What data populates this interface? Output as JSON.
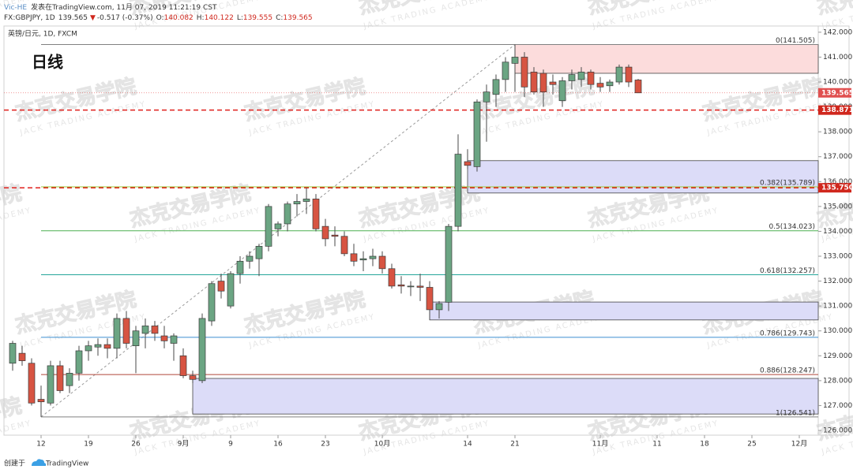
{
  "header": {
    "author": "Vic-HE",
    "published": "发表在TradingView.com, 11月 07, 2019 11:21:19 CST",
    "symbol": "FX:GBPJPY, 1D",
    "last": "139.565",
    "arrow": "▼",
    "change": "-0.517 (-0.37%)",
    "ohlc": [
      {
        "key": "O:",
        "value": "140.082"
      },
      {
        "key": "H:",
        "value": "140.122"
      },
      {
        "key": "L:",
        "value": "139.555"
      },
      {
        "key": "C:",
        "value": "139.565"
      }
    ]
  },
  "chart_data": {
    "type": "candlestick",
    "symbol_label": "英镑/日元, 1D, FXCM",
    "title": "日线",
    "categories": [
      null,
      null,
      null,
      "12",
      null,
      null,
      null,
      null,
      "19",
      null,
      null,
      null,
      null,
      "26",
      null,
      null,
      null,
      null,
      "9月",
      null,
      null,
      null,
      null,
      "9",
      null,
      null,
      null,
      null,
      "16",
      null,
      null,
      null,
      null,
      "23",
      null,
      null,
      null,
      null,
      null,
      "10月",
      null,
      null,
      null,
      null,
      null,
      null,
      null,
      null,
      "14",
      null,
      null,
      null,
      null,
      "21",
      null,
      null,
      null,
      null,
      null,
      null,
      null,
      null,
      "11月",
      null,
      null,
      null,
      null,
      null,
      "11",
      null,
      null,
      null,
      null,
      "18",
      null,
      null,
      null,
      null,
      "25",
      null,
      null,
      null,
      null,
      "12月"
    ],
    "open": [
      128.7,
      129.1,
      128.7,
      127.25,
      127.1,
      128.6,
      127.8,
      128.3,
      129.2,
      129.35,
      129.45,
      129.3,
      130.5,
      129.4,
      129.9,
      130.2,
      129.8,
      129.5,
      129.0,
      128.2,
      128.0,
      130.4,
      132.0,
      131.0,
      132.3,
      132.8,
      132.9,
      133.4,
      134.1,
      134.3,
      135.1,
      135.2,
      135.3,
      134.2,
      133.85,
      133.8,
      133.1,
      132.85,
      132.9,
      133.0,
      132.5,
      131.85,
      131.8,
      131.8,
      131.75,
      130.85,
      131.15,
      134.2,
      136.8,
      136.6,
      139.2,
      139.5,
      140.1,
      140.75,
      141.0,
      140.4,
      140.35,
      140.0,
      139.25,
      140.05,
      140.1,
      140.4,
      139.95,
      139.85,
      140.0,
      140.6,
      140.082,
      null,
      null,
      null,
      null,
      null,
      null,
      null,
      null,
      null,
      null,
      null,
      null,
      null,
      null,
      null,
      null,
      null
    ],
    "high": [
      129.6,
      129.4,
      128.9,
      127.8,
      128.8,
      128.8,
      128.5,
      129.4,
      129.6,
      129.7,
      129.7,
      130.7,
      130.8,
      130.2,
      130.5,
      130.4,
      130.2,
      129.9,
      129.3,
      128.4,
      130.7,
      132.0,
      132.3,
      132.4,
      133.0,
      133.2,
      133.5,
      135.1,
      134.4,
      135.2,
      135.5,
      135.75,
      135.5,
      134.5,
      134.2,
      134.0,
      133.5,
      133.2,
      133.3,
      133.2,
      132.7,
      132.2,
      132.0,
      132.3,
      132.0,
      131.2,
      134.3,
      137.9,
      137.3,
      139.3,
      139.9,
      140.3,
      141.0,
      141.505,
      141.2,
      140.6,
      140.5,
      140.3,
      140.2,
      140.5,
      140.6,
      140.5,
      140.2,
      140.1,
      140.7,
      140.7,
      140.122,
      null,
      null,
      null,
      null,
      null,
      null,
      null,
      null,
      null,
      null,
      null,
      null,
      null,
      null,
      null,
      null,
      null
    ],
    "low": [
      128.4,
      128.6,
      127.0,
      126.541,
      127.0,
      127.5,
      127.5,
      128.0,
      128.8,
      129.0,
      128.9,
      128.9,
      129.3,
      128.3,
      129.3,
      129.6,
      129.3,
      128.8,
      128.1,
      127.9,
      127.9,
      130.2,
      131.3,
      130.9,
      131.9,
      132.5,
      132.2,
      133.2,
      133.8,
      134.0,
      134.6,
      134.7,
      134.0,
      133.4,
      133.4,
      133.0,
      132.6,
      132.4,
      132.6,
      132.3,
      131.7,
      131.5,
      131.4,
      131.2,
      130.44,
      130.5,
      130.8,
      134.0,
      136.5,
      136.4,
      137.6,
      139.0,
      139.6,
      139.6,
      139.4,
      139.5,
      139.0,
      139.5,
      139.0,
      139.7,
      139.8,
      139.7,
      139.6,
      139.6,
      139.9,
      139.8,
      139.555,
      null,
      null,
      null,
      null,
      null,
      null,
      null,
      null,
      null,
      null,
      null,
      null,
      null,
      null,
      null,
      null,
      null
    ],
    "close": [
      129.5,
      128.8,
      127.1,
      127.15,
      128.6,
      127.6,
      128.3,
      129.2,
      129.4,
      129.45,
      129.3,
      130.5,
      129.5,
      130.0,
      130.2,
      129.9,
      129.6,
      129.8,
      128.2,
      128.05,
      130.5,
      131.9,
      131.6,
      132.3,
      132.8,
      133.0,
      133.4,
      135.0,
      134.3,
      135.1,
      135.2,
      135.3,
      134.1,
      133.7,
      133.8,
      133.1,
      132.8,
      132.9,
      133.0,
      132.5,
      131.8,
      131.8,
      131.8,
      131.75,
      130.85,
      131.1,
      134.2,
      137.1,
      136.65,
      139.2,
      139.6,
      140.1,
      140.8,
      141.0,
      139.8,
      139.6,
      139.6,
      139.9,
      140.05,
      140.3,
      140.4,
      139.9,
      139.8,
      140.0,
      140.6,
      140.0,
      139.565,
      null,
      null,
      null,
      null,
      null,
      null,
      null,
      null,
      null,
      null,
      null,
      null,
      null,
      null,
      null,
      null,
      null
    ],
    "up_color": "#6ba583",
    "down_color": "#d75442",
    "ylim": [
      125.81,
      142.25
    ],
    "yticks": [
      {
        "value": 126,
        "label": "126.000"
      },
      {
        "value": 127,
        "label": "127.000"
      },
      {
        "value": 128,
        "label": "128.000"
      },
      {
        "value": 129,
        "label": "129.000"
      },
      {
        "value": 130,
        "label": "130.000"
      },
      {
        "value": 131,
        "label": "131.000"
      },
      {
        "value": 132,
        "label": "132.000"
      },
      {
        "value": 133,
        "label": "133.000"
      },
      {
        "value": 134,
        "label": "134.000"
      },
      {
        "value": 135,
        "label": "135.000"
      },
      {
        "value": 136,
        "label": "136.000"
      },
      {
        "value": 137,
        "label": "137.000"
      },
      {
        "value": 138,
        "label": "138.000"
      },
      {
        "value": 139,
        "label": "139.000"
      },
      {
        "value": 140,
        "label": "140.000"
      },
      {
        "value": 141,
        "label": "141.000"
      },
      {
        "value": 142,
        "label": "142.000"
      }
    ],
    "last_price": 139.565,
    "price_lines": [
      138.871,
      {
        "value": 135.75,
        "label": "135.750"
      }
    ],
    "price_line_color": "#e0201c",
    "fib": {
      "start": 3,
      "end": 53,
      "levels": [
        {
          "price": 141.505,
          "label": "0(141.505)",
          "color": "#808080"
        },
        {
          "price": 135.789,
          "label": "0.382(135.789)",
          "color": "#9bc63a"
        },
        {
          "price": 134.023,
          "label": "0.5(134.023)",
          "color": "#4caf50"
        },
        {
          "price": 132.257,
          "label": "0.618(132.257)",
          "color": "#26a69a"
        },
        {
          "price": 129.743,
          "label": "0.786(129.743)",
          "color": "#3b8fd0"
        },
        {
          "price": 128.247,
          "label": "0.886(128.247)",
          "color": "#b0483a"
        },
        {
          "price": 126.541,
          "label": "1(126.541)",
          "color": "#808080"
        }
      ]
    },
    "zones": [
      {
        "start": 53,
        "top": 141.505,
        "bottom": 140.35,
        "color": "#fcdcdc"
      },
      {
        "start": 48,
        "top": 136.84,
        "bottom": 135.54,
        "color": "#dcdcf8"
      },
      {
        "start": 44,
        "top": 131.16,
        "bottom": 130.44,
        "color": "#dcdcf8"
      },
      {
        "start": 19,
        "top": 128.09,
        "bottom": 126.66,
        "color": "#dcdcf8"
      }
    ]
  },
  "watermark": {
    "cn": "杰克交易学院",
    "en": "JACK TRADING ACADEMY"
  },
  "footer": {
    "created": "创建于",
    "brand": "TradingView"
  }
}
